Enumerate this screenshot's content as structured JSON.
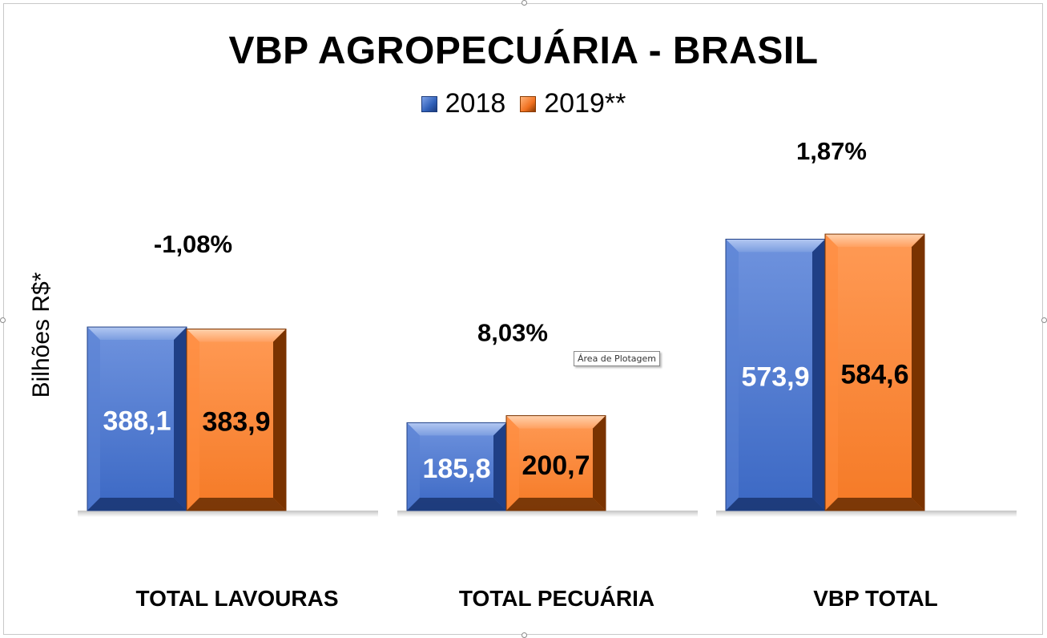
{
  "chart_data": {
    "type": "bar",
    "title": "VBP AGROPECUÁRIA - BRASIL",
    "ylabel": "Bilhões R$*",
    "categories": [
      "TOTAL LAVOURAS",
      "TOTAL PECUÁRIA",
      "VBP TOTAL"
    ],
    "series": [
      {
        "name": "2018",
        "values": [
          388.1,
          185.8,
          573.9
        ],
        "labels": [
          "388,1",
          "185,8",
          "573,9"
        ],
        "color": "#4472C4"
      },
      {
        "name": "2019**",
        "values": [
          383.9,
          200.7,
          584.6
        ],
        "labels": [
          "383,9",
          "200,7",
          "584,6"
        ],
        "color": "#ED7D31"
      }
    ],
    "variation_labels": [
      "-1,08%",
      "8,03%",
      "1,87%"
    ],
    "ylim": [
      0,
      700
    ],
    "grid": false,
    "legend_position": "top-center"
  },
  "tooltip": {
    "text": "Área de Plotagem"
  }
}
